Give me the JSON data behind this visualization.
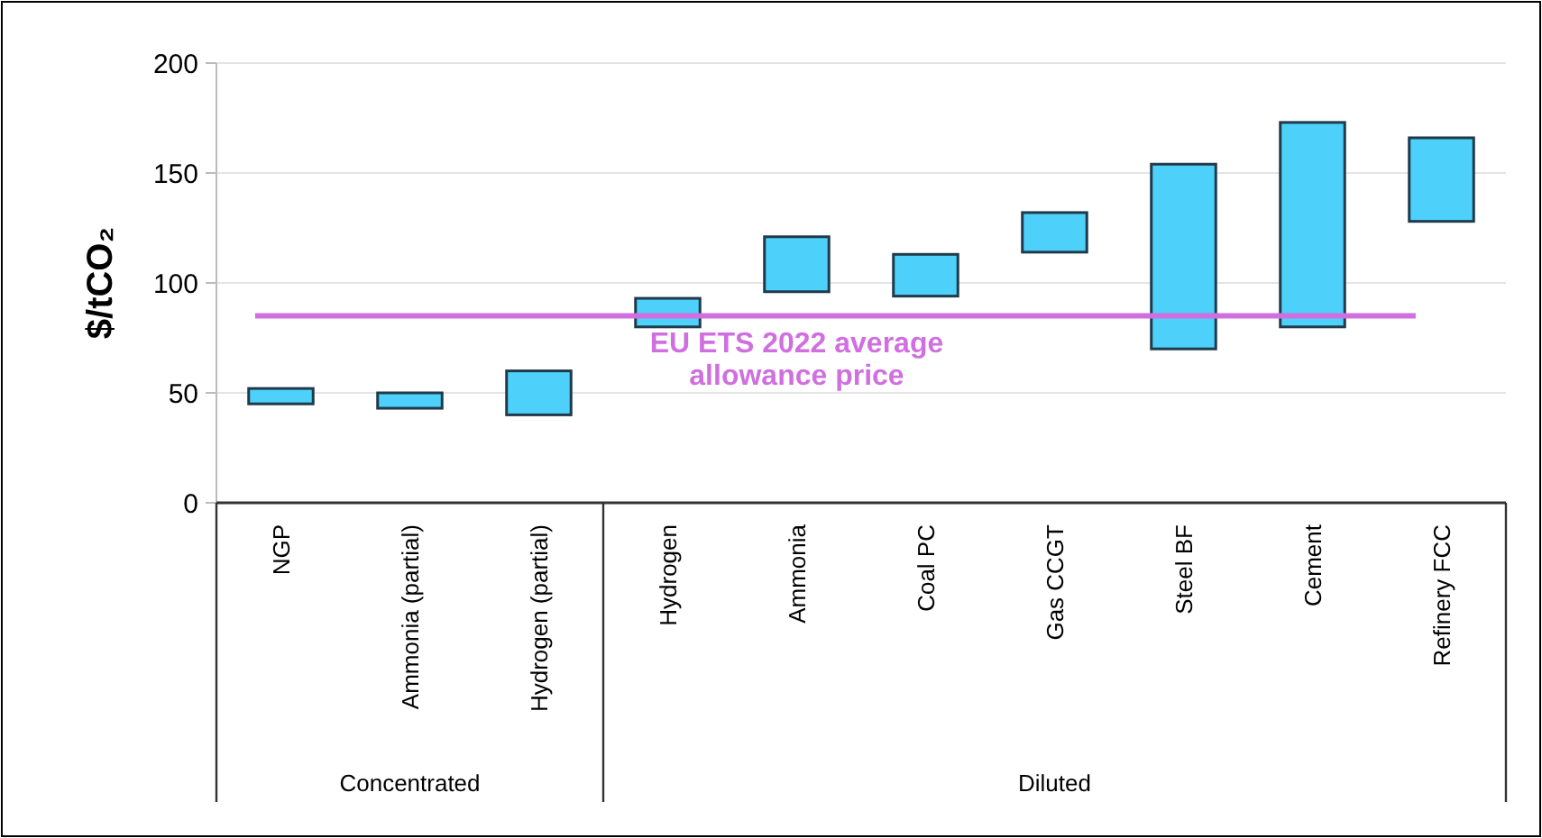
{
  "chart_data": {
    "type": "bar",
    "ylabel": "$/tCO₂",
    "categories": [
      "NGP",
      "Ammonia (partial)",
      "Hydrogen (partial)",
      "Hydrogen",
      "Ammonia",
      "Coal PC",
      "Gas CCGT",
      "Steel BF",
      "Cement",
      "Refinery FCC"
    ],
    "base": [
      45,
      43,
      40,
      80,
      96,
      94,
      114,
      70,
      80,
      128
    ],
    "values": [
      7,
      7,
      20,
      13,
      25,
      19,
      18,
      84,
      93,
      38
    ],
    "color": "#4dd0fa",
    "ylim": [
      0,
      200
    ],
    "yticks": [
      0,
      50,
      100,
      150,
      200
    ],
    "grid": "y",
    "ref_lines": [
      {
        "axis": "y",
        "value": 85,
        "label": "EU ETS 2022 average allowance price",
        "color": "#d070e0"
      }
    ],
    "annotations": [
      "Concentrated",
      "Diluted"
    ]
  }
}
